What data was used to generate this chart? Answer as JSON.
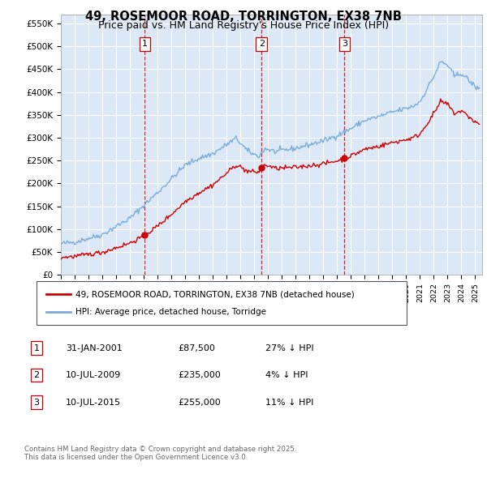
{
  "title": "49, ROSEMOOR ROAD, TORRINGTON, EX38 7NB",
  "subtitle": "Price paid vs. HM Land Registry's House Price Index (HPI)",
  "legend_line1": "49, ROSEMOOR ROAD, TORRINGTON, EX38 7NB (detached house)",
  "legend_line2": "HPI: Average price, detached house, Torridge",
  "sale_color": "#cc0000",
  "hpi_color": "#7aaddb",
  "plot_bg": "#dce8f5",
  "ylim": [
    0,
    570000
  ],
  "yticks": [
    0,
    50000,
    100000,
    150000,
    200000,
    250000,
    300000,
    350000,
    400000,
    450000,
    500000,
    550000
  ],
  "ytick_labels": [
    "£0",
    "£50K",
    "£100K",
    "£150K",
    "£200K",
    "£250K",
    "£300K",
    "£350K",
    "£400K",
    "£450K",
    "£500K",
    "£550K"
  ],
  "sale_dates": [
    2001.08,
    2009.53,
    2015.53
  ],
  "sale_prices": [
    87500,
    235000,
    255000
  ],
  "sale_labels": [
    "1",
    "2",
    "3"
  ],
  "vline_dates": [
    2001.08,
    2009.53,
    2015.53
  ],
  "footer_text": "Contains HM Land Registry data © Crown copyright and database right 2025.\nThis data is licensed under the Open Government Licence v3.0.",
  "table_rows": [
    {
      "num": "1",
      "date": "31-JAN-2001",
      "price": "£87,500",
      "hpi": "27% ↓ HPI"
    },
    {
      "num": "2",
      "date": "10-JUL-2009",
      "price": "£235,000",
      "hpi": "4% ↓ HPI"
    },
    {
      "num": "3",
      "date": "10-JUL-2015",
      "price": "£255,000",
      "hpi": "11% ↓ HPI"
    }
  ]
}
